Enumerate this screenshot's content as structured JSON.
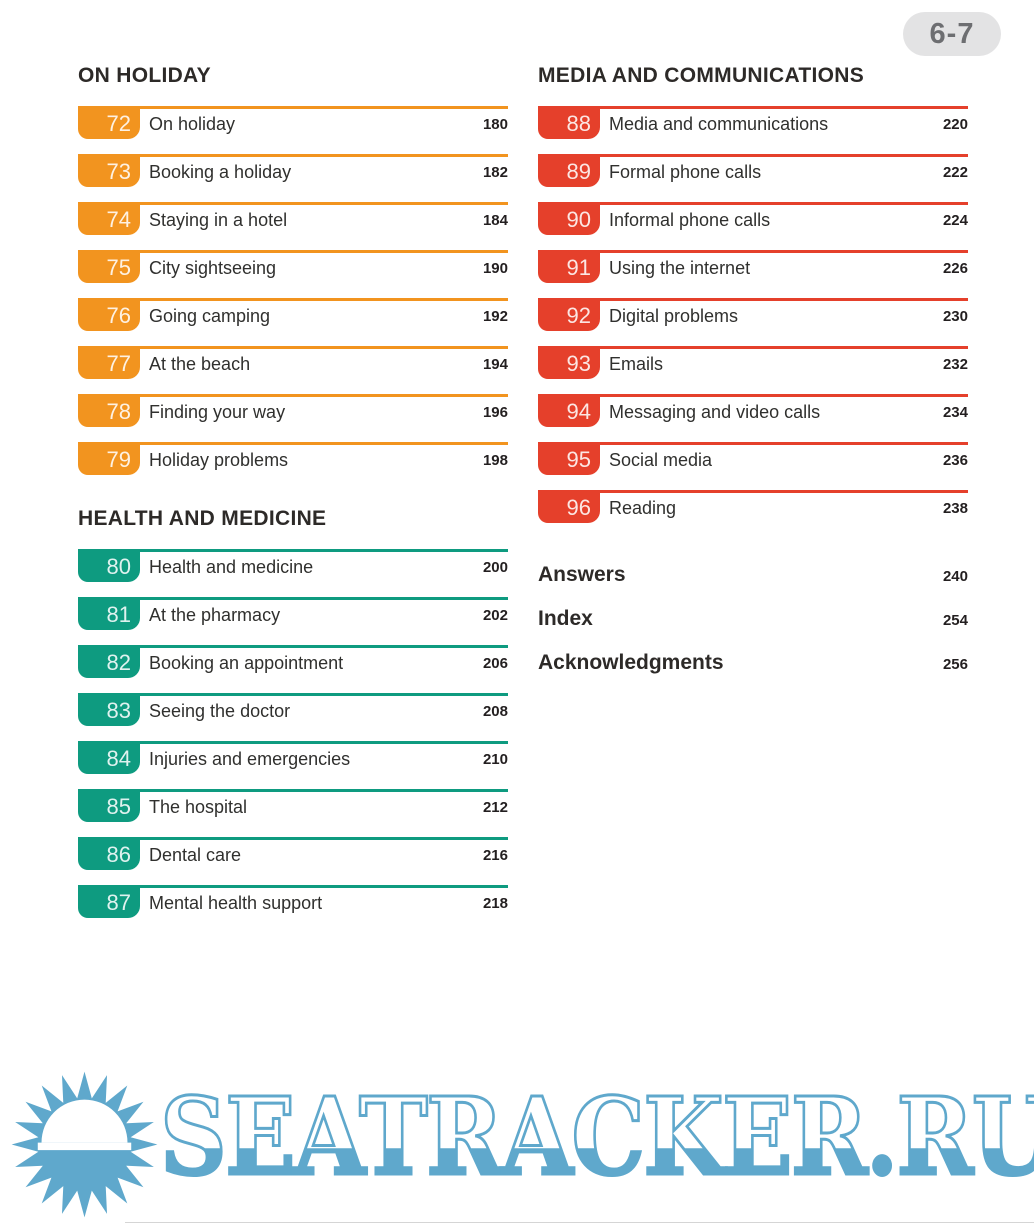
{
  "page_badge": "6-7",
  "colors": {
    "holiday_orange": "#F2941F",
    "health_teal": "#0E9B80",
    "media_red": "#E5402B",
    "watermark_blue": "#5FA8CC",
    "page_badge_bg": "#E3E3E4",
    "page_badge_text": "#6D6E71"
  },
  "columns": {
    "left": {
      "sections": [
        {
          "header": "ON HOLIDAY",
          "color": "#F2941F",
          "items": [
            {
              "num": "72",
              "title": "On holiday",
              "page": "180"
            },
            {
              "num": "73",
              "title": "Booking a holiday",
              "page": "182"
            },
            {
              "num": "74",
              "title": "Staying in a hotel",
              "page": "184"
            },
            {
              "num": "75",
              "title": "City sightseeing",
              "page": "190"
            },
            {
              "num": "76",
              "title": "Going camping",
              "page": "192"
            },
            {
              "num": "77",
              "title": "At the beach",
              "page": "194"
            },
            {
              "num": "78",
              "title": "Finding your way",
              "page": "196"
            },
            {
              "num": "79",
              "title": "Holiday problems",
              "page": "198"
            }
          ]
        },
        {
          "header": "HEALTH AND MEDICINE",
          "color": "#0E9B80",
          "items": [
            {
              "num": "80",
              "title": "Health and medicine",
              "page": "200"
            },
            {
              "num": "81",
              "title": "At the pharmacy",
              "page": "202"
            },
            {
              "num": "82",
              "title": "Booking an appointment",
              "page": "206"
            },
            {
              "num": "83",
              "title": "Seeing the doctor",
              "page": "208"
            },
            {
              "num": "84",
              "title": "Injuries and emergencies",
              "page": "210"
            },
            {
              "num": "85",
              "title": "The hospital",
              "page": "212"
            },
            {
              "num": "86",
              "title": "Dental care",
              "page": "216"
            },
            {
              "num": "87",
              "title": "Mental health support",
              "page": "218"
            }
          ]
        }
      ]
    },
    "right": {
      "sections": [
        {
          "header": "MEDIA AND COMMUNICATIONS",
          "color": "#E5402B",
          "items": [
            {
              "num": "88",
              "title": "Media and communications",
              "page": "220"
            },
            {
              "num": "89",
              "title": "Formal phone calls",
              "page": "222"
            },
            {
              "num": "90",
              "title": "Informal phone calls",
              "page": "224"
            },
            {
              "num": "91",
              "title": "Using the internet",
              "page": "226"
            },
            {
              "num": "92",
              "title": "Digital problems",
              "page": "230"
            },
            {
              "num": "93",
              "title": "Emails",
              "page": "232"
            },
            {
              "num": "94",
              "title": "Messaging and video calls",
              "page": "234"
            },
            {
              "num": "95",
              "title": "Social media",
              "page": "236"
            },
            {
              "num": "96",
              "title": "Reading",
              "page": "238"
            }
          ]
        }
      ],
      "back_matter": [
        {
          "title": "Answers",
          "page": "240"
        },
        {
          "title": "Index",
          "page": "254"
        },
        {
          "title": "Acknowledgments",
          "page": "256"
        }
      ]
    }
  },
  "watermark": {
    "text": "SEATRACKER.RU",
    "color": "#5FA8CC"
  }
}
